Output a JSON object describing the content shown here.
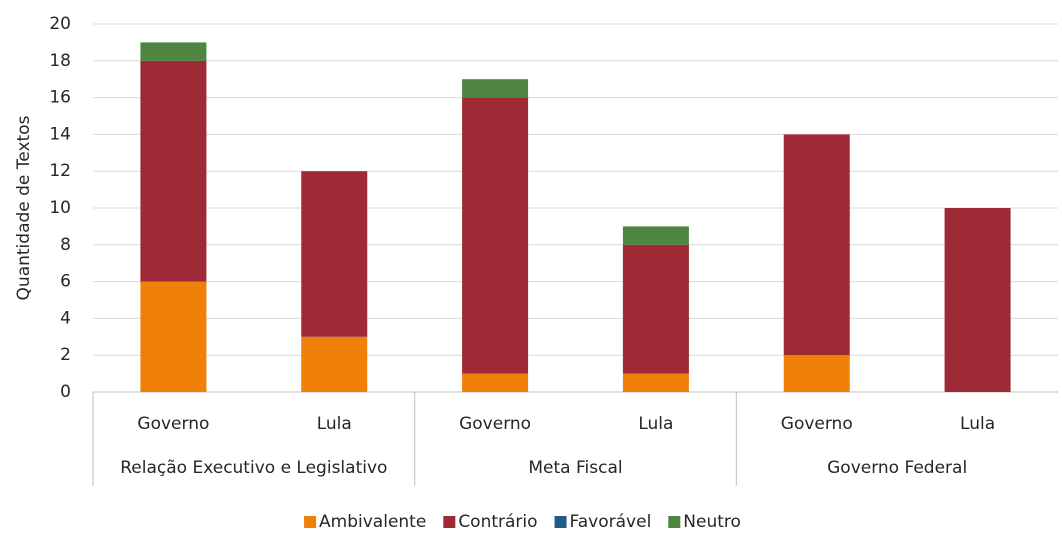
{
  "chart_data": {
    "type": "bar",
    "stacked": true,
    "y_label": "Quantidade de Textos",
    "groups": [
      {
        "name": "Relação Executivo e Legislativo",
        "categories": [
          "Governo",
          "Lula"
        ]
      },
      {
        "name": "Meta Fiscal",
        "categories": [
          "Governo",
          "Lula"
        ]
      },
      {
        "name": "Governo Federal",
        "categories": [
          "Governo",
          "Lula"
        ]
      }
    ],
    "series": [
      {
        "name": "Ambivalente",
        "color": "#f0800a",
        "values": [
          6,
          3,
          1,
          1,
          2,
          0
        ]
      },
      {
        "name": "Contrário",
        "color": "#9e2a36",
        "values": [
          12,
          9,
          15,
          7,
          12,
          10
        ]
      },
      {
        "name": "Favorável",
        "color": "#1f5c8a",
        "values": [
          0,
          0,
          0,
          0,
          0,
          0
        ]
      },
      {
        "name": "Neutro",
        "color": "#4e8542",
        "values": [
          1,
          0,
          1,
          1,
          0,
          0
        ]
      }
    ],
    "ylim": [
      0,
      20
    ],
    "yticks": [
      0,
      2,
      4,
      6,
      8,
      10,
      12,
      14,
      16,
      18,
      20
    ],
    "grid": true,
    "legend": "bottom"
  }
}
